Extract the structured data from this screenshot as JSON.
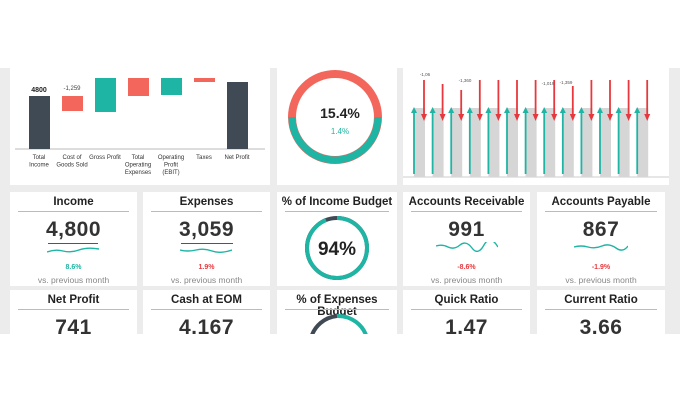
{
  "colors": {
    "teal": "#1fb5a4",
    "red": "#f2665c",
    "dark": "#3f4a55",
    "gray": "#d6d6d6",
    "arrow_red": "#e8383d"
  },
  "waterfall": {
    "categories": [
      {
        "id": "total-income",
        "label": [
          "Total",
          "Income"
        ],
        "value": "4800"
      },
      {
        "id": "cogs",
        "label": [
          "Cost of",
          "Goods Sold"
        ],
        "value": "-1,259"
      },
      {
        "id": "gross-profit",
        "label": [
          "Gross Profit"
        ]
      },
      {
        "id": "total-opex",
        "label": [
          "Total",
          "Operating",
          "Expenses"
        ]
      },
      {
        "id": "ebit",
        "label": [
          "Operating",
          "Profit",
          "(EBIT)"
        ]
      },
      {
        "id": "taxes",
        "label": [
          "Taxes"
        ]
      },
      {
        "id": "net-profit",
        "label": [
          "Net Profit"
        ]
      }
    ]
  },
  "margin": {
    "percent": "15.4%",
    "change": "1.4%"
  },
  "trend_chart": {
    "top_labels": [
      "-1,06",
      "-1,360",
      "-1,019",
      "-1,359"
    ]
  },
  "kpis": [
    {
      "id": "income",
      "title": "Income",
      "value": "4,800",
      "pct": "8.6%",
      "trend": "up",
      "vs": "vs. previous month"
    },
    {
      "id": "expenses",
      "title": "Expenses",
      "value": "3,059",
      "pct": "1.9%",
      "trend": "down",
      "vs": "vs. previous month"
    },
    {
      "id": "accounts-receivable",
      "title": "Accounts Receivable",
      "value": "991",
      "pct": "-8.6%",
      "trend": "down",
      "vs": "vs. previous month"
    },
    {
      "id": "accounts-payable",
      "title": "Accounts Payable",
      "value": "867",
      "pct": "-1.9%",
      "trend": "down",
      "vs": "vs. previous month"
    }
  ],
  "income_budget": {
    "title": "% of Income Budget",
    "value": "94%"
  },
  "bottom_kpis": [
    {
      "id": "net-profit",
      "title": "Net Profit",
      "value": "741"
    },
    {
      "id": "cash-eom",
      "title": "Cash at EOM",
      "value": "4,167"
    },
    {
      "id": "expenses-budget",
      "title": "% of Expenses Budget"
    },
    {
      "id": "quick-ratio",
      "title": "Quick Ratio",
      "value": "1.47"
    },
    {
      "id": "current-ratio",
      "title": "Current Ratio",
      "value": "3.66"
    }
  ]
}
